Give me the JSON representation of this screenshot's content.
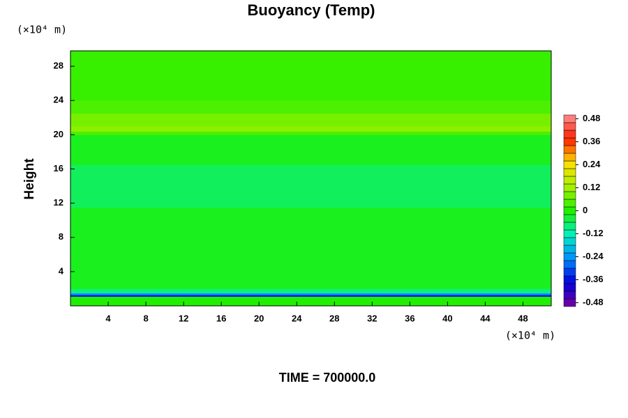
{
  "chart_data": {
    "type": "contour",
    "title": "Buoyancy (Temp)",
    "y_label": "Height",
    "x_unit": "(×10⁴ m)",
    "y_unit": "(×10⁴ m)",
    "footer": "TIME = 700000.0",
    "xlim": [
      0,
      51
    ],
    "ylim": [
      0,
      29.8
    ],
    "xticks": [
      4,
      8,
      12,
      16,
      20,
      24,
      28,
      32,
      36,
      40,
      44,
      48
    ],
    "yticks": [
      4,
      8,
      12,
      16,
      20,
      24,
      28
    ],
    "band_edges": [
      0,
      1.1,
      1.3,
      1.5,
      2,
      11.5,
      16.5,
      20,
      20.4,
      21,
      22.5,
      24,
      29.8
    ],
    "values": [
      0,
      -0.36,
      -0.24,
      -0.08,
      -0.02,
      -0.06,
      -0.02,
      0.04,
      0.1,
      0.08,
      0.04,
      0.02
    ],
    "clim": [
      -0.5,
      0.5
    ],
    "cticks": [
      -0.48,
      -0.36,
      -0.24,
      -0.12,
      0,
      0.12,
      0.24,
      0.36,
      0.48
    ],
    "colormap": [
      "#7800a0",
      "#0000e0",
      "#0090ff",
      "#00f0c0",
      "#20f000",
      "#a8f000",
      "#ffe000",
      "#ff2000",
      "#ff9090"
    ]
  }
}
